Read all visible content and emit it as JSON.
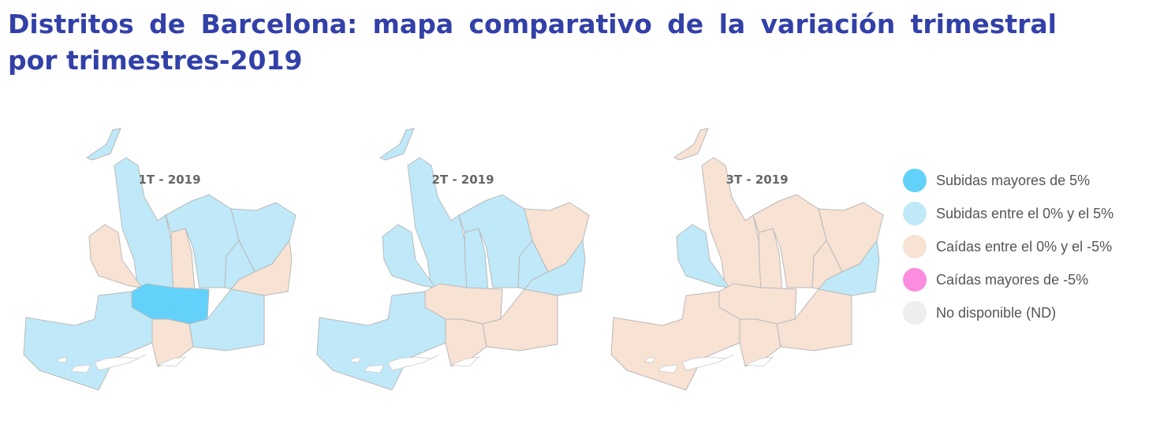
{
  "title": "Distritos de Barcelona: mapa comparativo de la variación trimestral por trimestres-2019",
  "colors": {
    "subidas_mayores_5": "#63d2fb",
    "subidas_0_5": "#bfe9f9",
    "caidas_0_5": "#f8e2d4",
    "caidas_mayores_5": "#fb8ce0",
    "no_disponible": "#eeeeee"
  },
  "legend": [
    {
      "label": "Subidas mayores de 5%",
      "color": "#63d2fb"
    },
    {
      "label": "Subidas entre el 0% y el 5%",
      "color": "#bfe9f9"
    },
    {
      "label": "Caídas entre el 0% y el -5%",
      "color": "#f8e2d4"
    },
    {
      "label": "Caídas mayores de -5%",
      "color": "#fb8ce0"
    },
    {
      "label": "No disponible (ND)",
      "color": "#eeeeee"
    }
  ],
  "maps": [
    {
      "label": "1T - 2019",
      "districts": {
        "sarria_sant_gervasi": "subidas_0_5",
        "les_corts": "caidas_0_5",
        "gracia": "caidas_0_5",
        "horta_guinardo": "subidas_0_5",
        "nou_barris": "subidas_0_5",
        "sant_andreu": "subidas_0_5",
        "sant_marti": "caidas_0_5",
        "eixample": "subidas_mayores_5",
        "sants_montjuic": "subidas_0_5",
        "ciutat_vella": "caidas_0_5",
        "sant_marti_sur": "subidas_0_5"
      }
    },
    {
      "label": "2T - 2019",
      "districts": {
        "sarria_sant_gervasi": "subidas_0_5",
        "les_corts": "subidas_0_5",
        "gracia": "subidas_0_5",
        "horta_guinardo": "subidas_0_5",
        "nou_barris": "caidas_0_5",
        "sant_andreu": "subidas_0_5",
        "sant_marti": "subidas_0_5",
        "eixample": "caidas_0_5",
        "sants_montjuic": "subidas_0_5",
        "ciutat_vella": "caidas_0_5",
        "sant_marti_sur": "caidas_0_5"
      }
    },
    {
      "label": "3T - 2019",
      "districts": {
        "sarria_sant_gervasi": "caidas_0_5",
        "les_corts": "subidas_0_5",
        "gracia": "caidas_0_5",
        "horta_guinardo": "caidas_0_5",
        "nou_barris": "caidas_0_5",
        "sant_andreu": "caidas_0_5",
        "sant_marti": "subidas_0_5",
        "eixample": "caidas_0_5",
        "sants_montjuic": "caidas_0_5",
        "ciutat_vella": "caidas_0_5",
        "sant_marti_sur": "caidas_0_5"
      }
    }
  ]
}
